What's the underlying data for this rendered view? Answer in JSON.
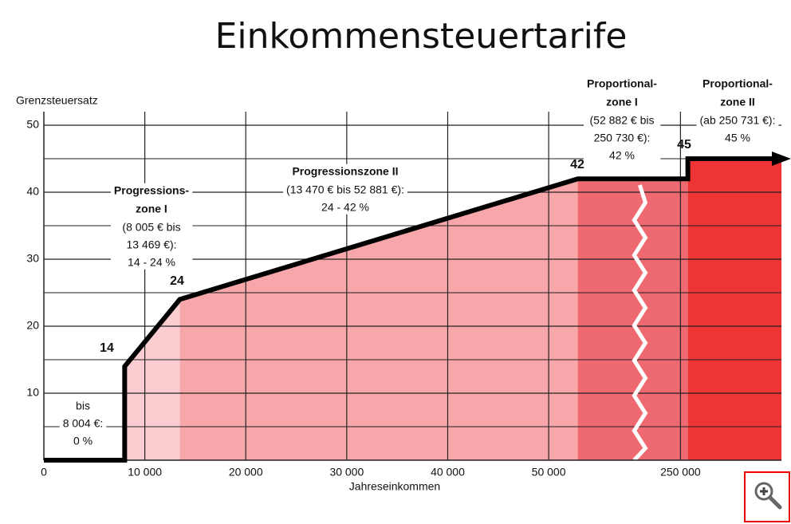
{
  "chart_data": {
    "type": "line",
    "title": "Einkommensteuertarife",
    "y_label": "Grenzsteuersatz",
    "x_label": "Jahreseinkommen",
    "xlim": [
      0,
      260000
    ],
    "axis_break": [
      58000,
      247000
    ],
    "ylim": [
      0,
      50
    ],
    "xticks": [
      0,
      {
        "value": 10000,
        "label": "10 000"
      },
      {
        "value": 20000,
        "label": "20 000"
      },
      {
        "value": 30000,
        "label": "30 000"
      },
      {
        "value": 40000,
        "label": "40 000"
      },
      {
        "value": 50000,
        "label": "50 000"
      },
      {
        "value": 250000,
        "label": "250 000"
      }
    ],
    "yticks": [
      10,
      20,
      30,
      40,
      50
    ],
    "y_minor_ticks": [
      5,
      15,
      25,
      35,
      45
    ],
    "grid": true,
    "series": [
      {
        "color": "#000000",
        "x": [
          0,
          8004,
          8005,
          13469,
          52881,
          250730,
          250731
        ],
        "values": [
          0,
          0,
          14,
          24,
          42,
          42,
          45
        ],
        "segment_colors": [
          null,
          null,
          "#fbcdd0",
          "#f7a6aa",
          "#ef6a70",
          null,
          "#ee3434"
        ]
      }
    ],
    "annotations": [
      {
        "heading": [
          "Progressions-",
          "zone I"
        ],
        "lines": [
          "(8 005 € bis",
          "13 469 €):",
          "14 - 24 %"
        ]
      },
      {
        "heading": [
          "Progressionszone II"
        ],
        "lines": [
          "(13 470 € bis 52 881 €):",
          "24 - 42 %"
        ]
      },
      {
        "heading": [
          "Proportional-",
          "zone I"
        ],
        "lines": [
          "(52 882 € bis",
          "250 730 €):",
          "42 %"
        ]
      },
      {
        "heading": [
          "Proportional-",
          "zone II"
        ],
        "lines": [
          "(ab 250 731 €):",
          "45 %"
        ]
      },
      {
        "heading": [],
        "lines": [
          "bis",
          "8 004 €:",
          "0 %"
        ]
      }
    ]
  }
}
